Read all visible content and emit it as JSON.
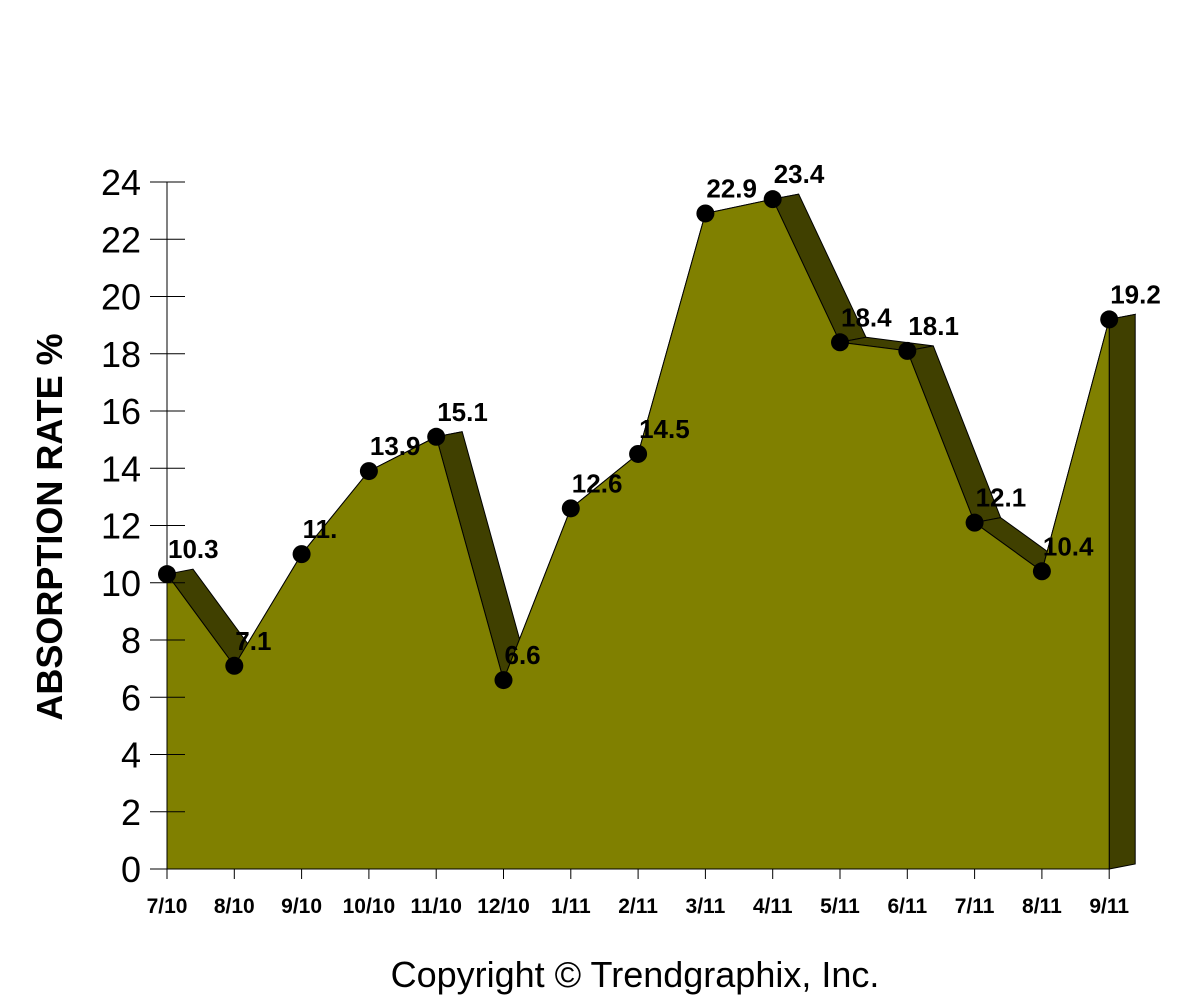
{
  "chart_data": {
    "type": "area",
    "categories": [
      "7/10",
      "8/10",
      "9/10",
      "10/10",
      "11/10",
      "12/10",
      "1/11",
      "2/11",
      "3/11",
      "4/11",
      "5/11",
      "6/11",
      "7/11",
      "8/11",
      "9/11"
    ],
    "values": [
      10.3,
      7.1,
      11.0,
      13.9,
      15.1,
      6.6,
      12.6,
      14.5,
      22.9,
      23.4,
      18.4,
      18.1,
      12.1,
      10.4,
      19.2
    ],
    "data_labels": [
      "10.3",
      "7.1",
      "11.",
      "13.9",
      "15.1",
      "6.6",
      "12.6",
      "14.5",
      "22.9",
      "23.4",
      "18.4",
      "18.1",
      "12.1",
      "10.4",
      "19.2"
    ],
    "title": "",
    "xlabel": "",
    "ylabel": "ABSORPTION RATE %",
    "ylim": [
      0,
      24
    ],
    "yticks": [
      0,
      2,
      4,
      6,
      8,
      10,
      12,
      14,
      16,
      18,
      20,
      22,
      24
    ],
    "grid": false,
    "legend": "none",
    "fill_color": "#808000",
    "shadow_color": "#404000",
    "marker_color": "#000000"
  },
  "footer": {
    "copyright": "Copyright © Trendgraphix, Inc."
  }
}
